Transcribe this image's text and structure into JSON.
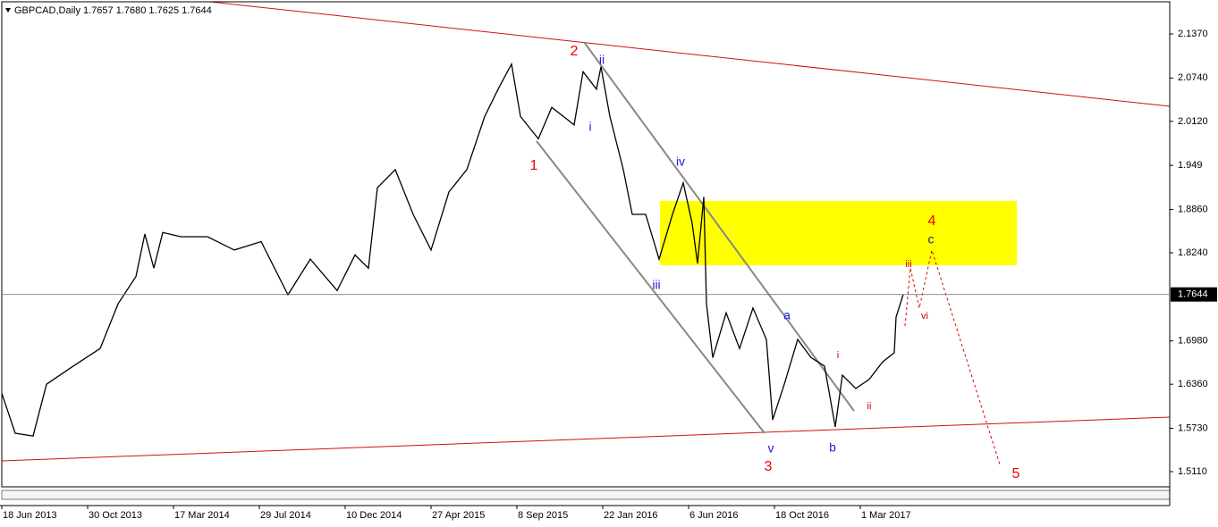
{
  "chart_data": {
    "type": "line",
    "title": "GBPCAD,Daily  1.7657 1.7680 1.7625 1.7644",
    "x": [
      0,
      15,
      35,
      50,
      80,
      110,
      130,
      150,
      160,
      170,
      180,
      200,
      230,
      260,
      290,
      320,
      345,
      375,
      395,
      410,
      420,
      440,
      460,
      480,
      500,
      520,
      540,
      555,
      570,
      580,
      600,
      615,
      640,
      650,
      665,
      670,
      680,
      695,
      705,
      720,
      735,
      750,
      762,
      772,
      778,
      785,
      788,
      795,
      810,
      825,
      840,
      855,
      862,
      875,
      890,
      905,
      920,
      932,
      940,
      955,
      970,
      985,
      998,
      1000,
      1008
    ],
    "series": [
      {
        "name": "GBPCAD",
        "color": "#000000",
        "values": [
          1.623,
          1.566,
          1.562,
          1.636,
          1.662,
          1.687,
          1.751,
          1.79,
          1.851,
          1.802,
          1.853,
          1.847,
          1.847,
          1.828,
          1.84,
          1.764,
          1.815,
          1.77,
          1.821,
          1.802,
          1.917,
          1.943,
          1.879,
          1.828,
          1.911,
          1.943,
          2.019,
          2.058,
          2.094,
          2.019,
          1.987,
          2.032,
          2.007,
          2.083,
          2.058,
          2.09,
          2.019,
          1.943,
          1.879,
          1.879,
          1.815,
          1.879,
          1.924,
          1.866,
          1.809,
          1.904,
          1.751,
          1.674,
          1.738,
          1.687,
          1.745,
          1.7,
          1.585,
          1.636,
          1.7,
          1.674,
          1.662,
          1.575,
          1.649,
          1.63,
          1.643,
          1.668,
          1.681,
          1.732,
          1.7644
        ]
      }
    ],
    "current_price": 1.7644,
    "xlim": [
      0,
      1306
    ],
    "xticks": [
      {
        "value": 0,
        "label": "18 Jun 2013"
      },
      {
        "value": 96,
        "label": "30 Oct 2013"
      },
      {
        "value": 192,
        "label": "17 Mar 2014"
      },
      {
        "value": 288,
        "label": "29 Jul 2014"
      },
      {
        "value": 384,
        "label": "10 Dec 2014"
      },
      {
        "value": 480,
        "label": "27 Apr 2015"
      },
      {
        "value": 576,
        "label": "8 Sep 2015"
      },
      {
        "value": 672,
        "label": "22 Jan 2016"
      },
      {
        "value": 768,
        "label": "6 Jun 2016"
      },
      {
        "value": 864,
        "label": "18 Oct 2016"
      },
      {
        "value": 960,
        "label": "1 Mar 2017"
      }
    ],
    "ylim": [
      1.4893,
      2.183
    ],
    "yticks": [
      {
        "value": 2.137,
        "label": "2.1370"
      },
      {
        "value": 2.074,
        "label": "2.0740"
      },
      {
        "value": 2.012,
        "label": "2.0120"
      },
      1.949,
      {
        "value": 1.886,
        "label": "1.8860"
      },
      {
        "value": 1.824,
        "label": "1.8240"
      },
      {
        "value": 1.698,
        "label": "1.6980"
      },
      {
        "value": 1.636,
        "label": "1.6360"
      },
      {
        "value": 1.573,
        "label": "1.5730"
      },
      {
        "value": 1.511,
        "label": "1.5110"
      }
    ],
    "annotations": [
      {
        "text": "2",
        "color": "#ee0000"
      },
      {
        "text": "ii",
        "color": "#1a1adb"
      },
      {
        "text": "1",
        "color": "#ee0000"
      },
      {
        "text": "i",
        "color": "#1a1adb"
      },
      {
        "text": "iv",
        "color": "#1a1adb"
      },
      {
        "text": "iii",
        "color": "#1a1adb"
      },
      {
        "text": "4",
        "color": "#ee0000"
      },
      {
        "text": "c",
        "color": "#1a1a80"
      },
      {
        "text": "iii",
        "color": "#cc0000"
      },
      {
        "text": "vi",
        "color": "#cc0000"
      },
      {
        "text": "a",
        "color": "#1a1adb"
      },
      {
        "text": "i",
        "color": "#cc0000"
      },
      {
        "text": "ii",
        "color": "#cc0000"
      },
      {
        "text": "v",
        "color": "#1a1adb"
      },
      {
        "text": "b",
        "color": "#1a1adb"
      },
      {
        "text": "3",
        "color": "#ee0000"
      },
      {
        "text": "5",
        "color": "#ee0000"
      }
    ]
  }
}
